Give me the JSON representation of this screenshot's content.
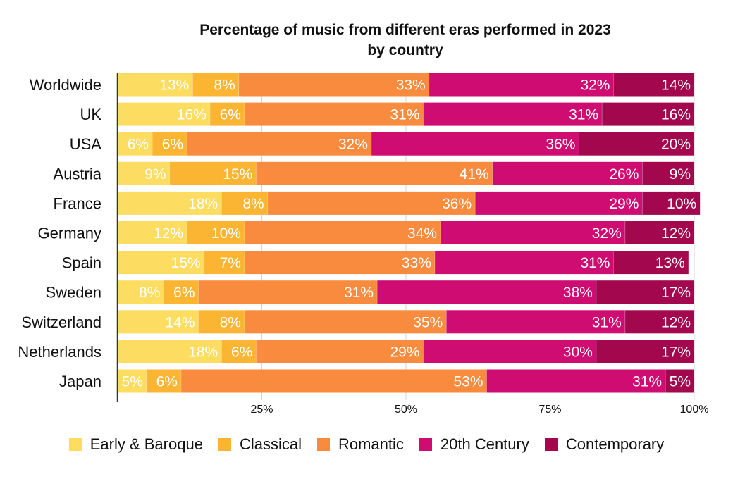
{
  "chart_data": {
    "type": "bar",
    "orientation": "horizontal",
    "stacked": true,
    "title": "Percentage of music from different eras performed in 2023\nby country",
    "title_lines": [
      "Percentage of music from different eras performed in 2023",
      "by country"
    ],
    "categories": [
      "Worldwide",
      "UK",
      "USA",
      "Austria",
      "France",
      "Germany",
      "Spain",
      "Sweden",
      "Switzerland",
      "Netherlands",
      "Japan"
    ],
    "series": [
      {
        "name": "Early & Baroque",
        "color": "#FCDD62",
        "values": [
          13,
          16,
          6,
          9,
          18,
          12,
          15,
          8,
          14,
          18,
          5
        ]
      },
      {
        "name": "Classical",
        "color": "#FBB533",
        "values": [
          8,
          6,
          6,
          15,
          8,
          10,
          7,
          6,
          8,
          6,
          6
        ]
      },
      {
        "name": "Romantic",
        "color": "#F88B3E",
        "values": [
          33,
          31,
          32,
          41,
          36,
          34,
          33,
          31,
          35,
          29,
          53
        ]
      },
      {
        "name": "20th Century",
        "color": "#CF0C72",
        "values": [
          32,
          31,
          36,
          26,
          29,
          32,
          31,
          38,
          31,
          30,
          31
        ]
      },
      {
        "name": "Contemporary",
        "color": "#A3084F",
        "values": [
          14,
          16,
          20,
          9,
          10,
          12,
          13,
          17,
          12,
          17,
          5
        ]
      }
    ],
    "value_suffix": "%",
    "xlim": [
      0,
      100
    ],
    "xticks": [
      25,
      50,
      75,
      100
    ],
    "xtick_labels": [
      "25%",
      "50%",
      "75%",
      "100%"
    ],
    "grid": true,
    "legend_position": "bottom"
  }
}
